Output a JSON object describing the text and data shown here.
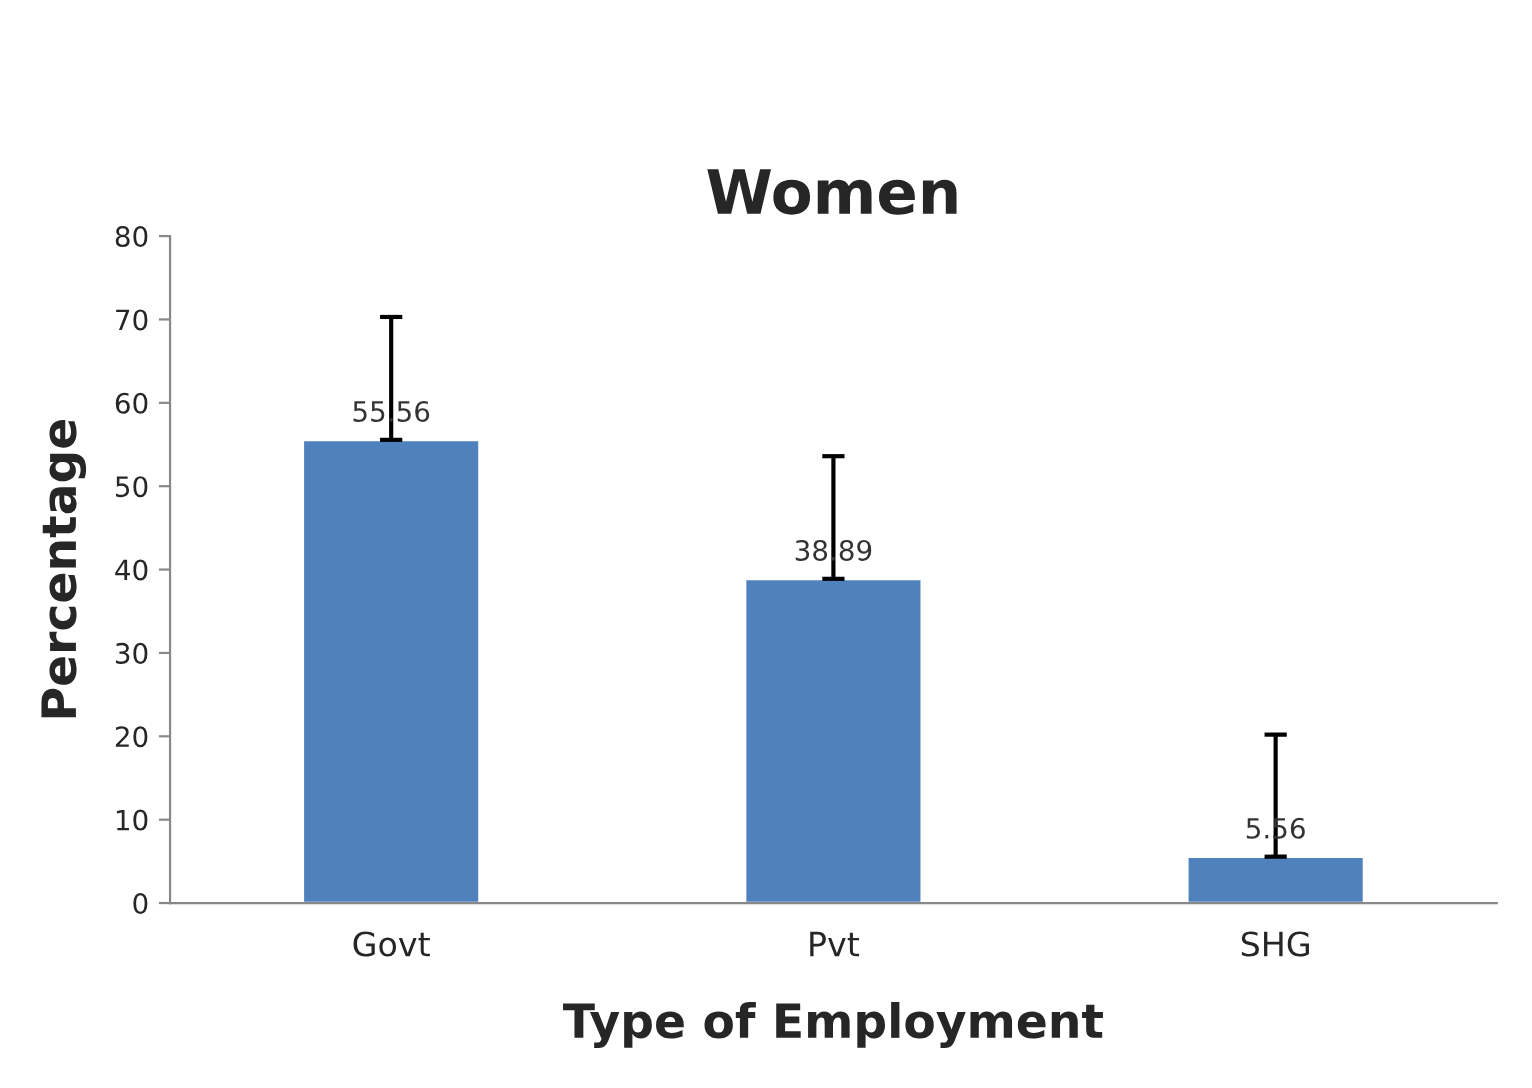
{
  "chart_data": {
    "type": "bar",
    "title": "Women",
    "xlabel": "Type of Employment",
    "ylabel": "Percentage",
    "categories": [
      "Govt",
      "Pvt",
      "SHG"
    ],
    "values": [
      55.56,
      38.89,
      5.56
    ],
    "errors": [
      [
        55.56,
        70.3
      ],
      [
        38.89,
        53.6
      ],
      [
        5.56,
        20.2
      ]
    ],
    "color": "#4f81bd",
    "data_labels": true,
    "ylim": [
      0,
      80
    ],
    "yticks": [
      0,
      10,
      20,
      30,
      40,
      50,
      60,
      70,
      80
    ],
    "grid": false,
    "legend": false
  }
}
